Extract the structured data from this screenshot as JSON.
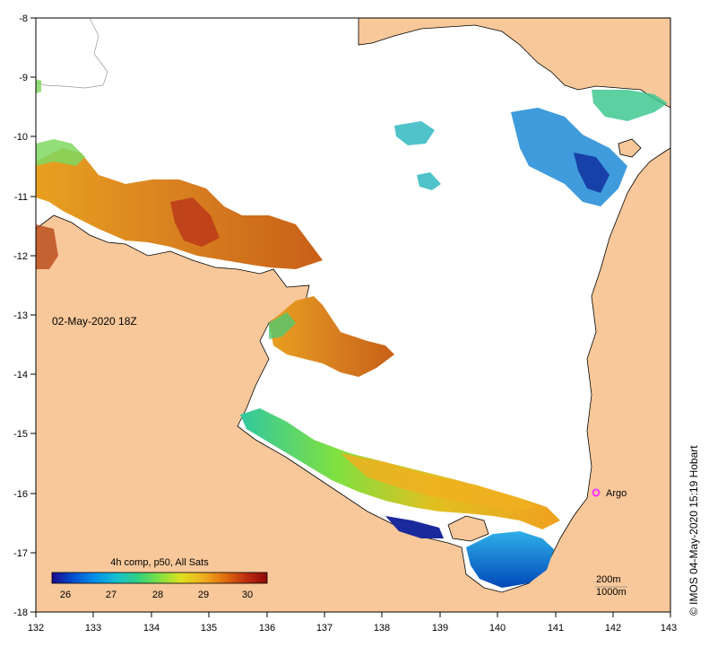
{
  "map": {
    "date_label": "02-May-2020 18Z",
    "credit": "© IMOS 04-May-2020 15:19 Hobart",
    "lon_ticks": [
      "132",
      "133",
      "134",
      "135",
      "136",
      "137",
      "138",
      "139",
      "140",
      "141",
      "142",
      "143"
    ],
    "lat_ticks": [
      "-8",
      "-9",
      "-10",
      "-11",
      "-12",
      "-13",
      "-14",
      "-15",
      "-16",
      "-17",
      "-18"
    ],
    "argo": {
      "label": "Argo",
      "color": "#ff33ff"
    },
    "scale": {
      "contour_200": "200m",
      "contour_1000": "1000m"
    },
    "colorbar": {
      "title": "4h comp, p50, All Sats",
      "ticks": [
        "26",
        "27",
        "28",
        "29",
        "30"
      ],
      "colors": [
        "#1a0b8c",
        "#0050d0",
        "#0090e8",
        "#18c0d0",
        "#30d080",
        "#80e040",
        "#e0e020",
        "#f0b020",
        "#e07010",
        "#c03010",
        "#8c0808"
      ]
    },
    "colors": {
      "land": "#f8c89a",
      "sea": "#ffffff",
      "frame": "#000000"
    }
  }
}
